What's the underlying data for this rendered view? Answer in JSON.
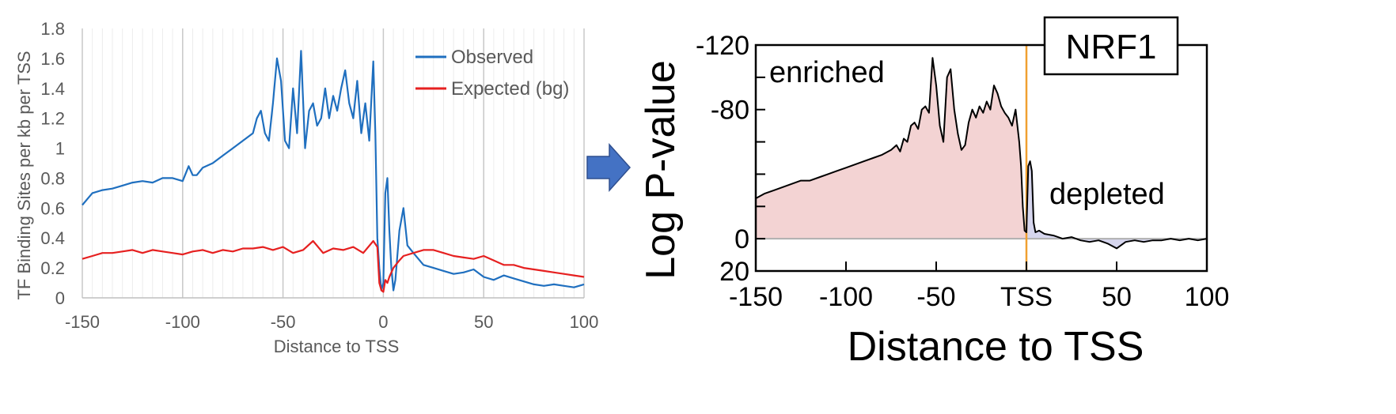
{
  "chart_data": [
    {
      "type": "line",
      "xlabel": "Distance to TSS",
      "ylabel": "TF Binding Sites per kb per TSS",
      "xlim": [
        -150,
        100
      ],
      "ylim": [
        0,
        1.8
      ],
      "x_ticks": [
        "-150",
        "-100",
        "-50",
        "0",
        "50",
        "100"
      ],
      "y_ticks": [
        "0",
        "0.2",
        "0.4",
        "0.6",
        "0.8",
        "1",
        "1.2",
        "1.4",
        "1.6",
        "1.8"
      ],
      "grid": "vertical",
      "legend_position": "top-right",
      "series": [
        {
          "name": "Observed",
          "color": "#1f6fbf",
          "x": [
            -150,
            -145,
            -140,
            -135,
            -130,
            -125,
            -120,
            -115,
            -110,
            -105,
            -100,
            -97,
            -95,
            -93,
            -90,
            -85,
            -80,
            -75,
            -70,
            -65,
            -63,
            -61,
            -59,
            -57,
            -55,
            -53,
            -51,
            -49,
            -47,
            -45,
            -43,
            -41,
            -39,
            -37,
            -35,
            -33,
            -31,
            -29,
            -27,
            -25,
            -23,
            -21,
            -19,
            -17,
            -15,
            -13,
            -11,
            -9,
            -7,
            -5,
            -4,
            -3,
            -2,
            -1,
            0,
            1,
            2,
            3,
            4,
            5,
            6,
            8,
            10,
            12,
            15,
            20,
            25,
            30,
            35,
            40,
            45,
            50,
            55,
            60,
            65,
            70,
            75,
            80,
            85,
            90,
            95,
            100
          ],
          "y": [
            0.62,
            0.7,
            0.72,
            0.73,
            0.75,
            0.77,
            0.78,
            0.77,
            0.8,
            0.8,
            0.78,
            0.88,
            0.82,
            0.82,
            0.87,
            0.9,
            0.95,
            1.0,
            1.05,
            1.1,
            1.2,
            1.25,
            1.1,
            1.05,
            1.3,
            1.6,
            1.45,
            1.05,
            1.0,
            1.4,
            1.1,
            1.65,
            1.0,
            1.25,
            1.3,
            1.15,
            1.2,
            1.4,
            1.2,
            1.35,
            1.25,
            1.4,
            1.52,
            1.3,
            1.2,
            1.45,
            1.1,
            1.3,
            1.05,
            1.58,
            1.1,
            0.4,
            0.2,
            0.05,
            0.1,
            0.7,
            0.8,
            0.45,
            0.2,
            0.05,
            0.12,
            0.45,
            0.6,
            0.35,
            0.3,
            0.22,
            0.2,
            0.18,
            0.16,
            0.17,
            0.19,
            0.14,
            0.12,
            0.15,
            0.13,
            0.11,
            0.09,
            0.08,
            0.09,
            0.08,
            0.07,
            0.09
          ]
        },
        {
          "name": "Expected (bg)",
          "color": "#e62020",
          "x": [
            -150,
            -145,
            -140,
            -135,
            -130,
            -125,
            -120,
            -115,
            -110,
            -105,
            -100,
            -95,
            -90,
            -85,
            -80,
            -75,
            -70,
            -65,
            -60,
            -55,
            -50,
            -45,
            -40,
            -35,
            -30,
            -25,
            -20,
            -15,
            -10,
            -5,
            -3,
            -2,
            -1,
            0,
            1,
            2,
            3,
            5,
            8,
            10,
            15,
            20,
            25,
            30,
            35,
            40,
            45,
            50,
            55,
            60,
            65,
            70,
            75,
            80,
            85,
            90,
            95,
            100
          ],
          "y": [
            0.26,
            0.28,
            0.3,
            0.3,
            0.31,
            0.32,
            0.3,
            0.32,
            0.31,
            0.3,
            0.29,
            0.31,
            0.32,
            0.3,
            0.32,
            0.31,
            0.33,
            0.33,
            0.34,
            0.32,
            0.34,
            0.3,
            0.32,
            0.38,
            0.3,
            0.33,
            0.32,
            0.34,
            0.3,
            0.38,
            0.34,
            0.1,
            0.05,
            0.04,
            0.12,
            0.1,
            0.14,
            0.2,
            0.25,
            0.28,
            0.3,
            0.32,
            0.32,
            0.3,
            0.28,
            0.27,
            0.26,
            0.28,
            0.25,
            0.22,
            0.22,
            0.2,
            0.19,
            0.18,
            0.17,
            0.16,
            0.15,
            0.14
          ]
        }
      ]
    },
    {
      "type": "area",
      "xlabel": "Distance to TSS",
      "ylabel": "Log P-value",
      "xlim": [
        -150,
        100
      ],
      "ylim": [
        20,
        -120
      ],
      "x_ticks": [
        "-150",
        "-100",
        "-50",
        "TSS",
        "50",
        "100"
      ],
      "y_ticks": [
        "-120",
        "-80",
        "0",
        "20"
      ],
      "annotations": [
        "enriched",
        "depleted"
      ],
      "badge": "NRF1",
      "tss_line_color": "#f0a030",
      "enriched_fill": "#f3d3d3",
      "depleted_fill": "#d6d6ee",
      "series": [
        {
          "color": "#000000",
          "x": [
            -150,
            -145,
            -140,
            -135,
            -130,
            -125,
            -120,
            -115,
            -110,
            -105,
            -100,
            -95,
            -90,
            -85,
            -80,
            -75,
            -72,
            -70,
            -68,
            -66,
            -64,
            -62,
            -60,
            -58,
            -56,
            -54,
            -52,
            -50,
            -48,
            -46,
            -44,
            -42,
            -40,
            -38,
            -36,
            -34,
            -32,
            -30,
            -28,
            -26,
            -24,
            -22,
            -20,
            -18,
            -16,
            -14,
            -12,
            -10,
            -8,
            -6,
            -4,
            -3,
            -2,
            -1,
            0,
            1,
            2,
            3,
            4,
            5,
            7,
            10,
            15,
            20,
            25,
            30,
            35,
            40,
            45,
            50,
            55,
            60,
            65,
            70,
            75,
            80,
            85,
            90,
            95,
            100
          ],
          "y": [
            -25,
            -28,
            -30,
            -32,
            -34,
            -36,
            -36,
            -38,
            -40,
            -42,
            -44,
            -46,
            -48,
            -50,
            -52,
            -55,
            -58,
            -54,
            -62,
            -60,
            -70,
            -72,
            -68,
            -80,
            -82,
            -78,
            -112,
            -95,
            -70,
            -60,
            -100,
            -105,
            -80,
            -65,
            -55,
            -58,
            -72,
            -80,
            -75,
            -82,
            -78,
            -85,
            -80,
            -95,
            -90,
            -82,
            -78,
            -75,
            -70,
            -80,
            -60,
            -45,
            -20,
            -5,
            -4,
            -45,
            -48,
            -42,
            -10,
            -4,
            -5,
            -3,
            -2,
            0,
            -1,
            1,
            2,
            1,
            3,
            6,
            2,
            1,
            2,
            1,
            1,
            0,
            1,
            0,
            1,
            0
          ]
        }
      ]
    }
  ],
  "arrow_icon": "right-arrow-icon"
}
